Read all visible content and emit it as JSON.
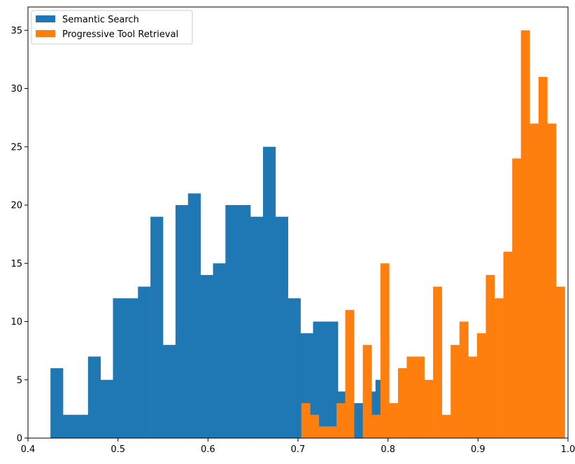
{
  "chart_data": {
    "type": "histogram",
    "title": "",
    "xlabel": "",
    "ylabel": "",
    "xlim": [
      0.4,
      1.0
    ],
    "ylim": [
      0,
      37
    ],
    "x_ticks": [
      0.4,
      0.5,
      0.6,
      0.7,
      0.8,
      0.9,
      1.0
    ],
    "y_ticks": [
      0,
      5,
      10,
      15,
      20,
      25,
      30,
      35
    ],
    "x_tick_labels": [
      "0.4",
      "0.5",
      "0.6",
      "0.7",
      "0.8",
      "0.9",
      "1.0"
    ],
    "y_tick_labels": [
      "0",
      "5",
      "10",
      "15",
      "20",
      "25",
      "30",
      "35"
    ],
    "grid": false,
    "legend_position": "upper-left",
    "series": [
      {
        "name": "Semantic Search",
        "color": "#1f77b4",
        "bins": [
          {
            "x0": 0.425,
            "x1": 0.4389,
            "count": 6
          },
          {
            "x0": 0.4389,
            "x1": 0.4528,
            "count": 2
          },
          {
            "x0": 0.4528,
            "x1": 0.4667,
            "count": 2
          },
          {
            "x0": 0.4667,
            "x1": 0.4806,
            "count": 7
          },
          {
            "x0": 0.4806,
            "x1": 0.4944,
            "count": 5
          },
          {
            "x0": 0.4944,
            "x1": 0.5083,
            "count": 12
          },
          {
            "x0": 0.5083,
            "x1": 0.5222,
            "count": 12
          },
          {
            "x0": 0.5222,
            "x1": 0.5361,
            "count": 13
          },
          {
            "x0": 0.5361,
            "x1": 0.55,
            "count": 19
          },
          {
            "x0": 0.55,
            "x1": 0.5639,
            "count": 8
          },
          {
            "x0": 0.5639,
            "x1": 0.5778,
            "count": 20
          },
          {
            "x0": 0.5778,
            "x1": 0.5917,
            "count": 21
          },
          {
            "x0": 0.5917,
            "x1": 0.6056,
            "count": 14
          },
          {
            "x0": 0.6056,
            "x1": 0.6194,
            "count": 15
          },
          {
            "x0": 0.6194,
            "x1": 0.6333,
            "count": 20
          },
          {
            "x0": 0.6333,
            "x1": 0.6472,
            "count": 20
          },
          {
            "x0": 0.6472,
            "x1": 0.6611,
            "count": 19
          },
          {
            "x0": 0.6611,
            "x1": 0.675,
            "count": 25
          },
          {
            "x0": 0.675,
            "x1": 0.6889,
            "count": 19
          },
          {
            "x0": 0.6889,
            "x1": 0.7028,
            "count": 12
          },
          {
            "x0": 0.7028,
            "x1": 0.7167,
            "count": 9
          },
          {
            "x0": 0.7167,
            "x1": 0.7306,
            "count": 10
          },
          {
            "x0": 0.7306,
            "x1": 0.7444,
            "count": 10
          },
          {
            "x0": 0.7444,
            "x1": 0.7583,
            "count": 4
          },
          {
            "x0": 0.7583,
            "x1": 0.7722,
            "count": 3
          },
          {
            "x0": 0.7722,
            "x1": 0.7861,
            "count": 4
          },
          {
            "x0": 0.7861,
            "x1": 0.792,
            "count": 5
          }
        ]
      },
      {
        "name": "Progressive Tool Retrieval",
        "color": "#ff7f0e",
        "bins": [
          {
            "x0": 0.7037,
            "x1": 0.7135,
            "count": 3
          },
          {
            "x0": 0.7135,
            "x1": 0.7232,
            "count": 2
          },
          {
            "x0": 0.7232,
            "x1": 0.733,
            "count": 1
          },
          {
            "x0": 0.733,
            "x1": 0.7428,
            "count": 1
          },
          {
            "x0": 0.7428,
            "x1": 0.7525,
            "count": 3
          },
          {
            "x0": 0.7525,
            "x1": 0.7623,
            "count": 11
          },
          {
            "x0": 0.7623,
            "x1": 0.772,
            "count": 0
          },
          {
            "x0": 0.772,
            "x1": 0.7818,
            "count": 8
          },
          {
            "x0": 0.7818,
            "x1": 0.7916,
            "count": 2
          },
          {
            "x0": 0.7916,
            "x1": 0.8013,
            "count": 15
          },
          {
            "x0": 0.8013,
            "x1": 0.8111,
            "count": 3
          },
          {
            "x0": 0.8111,
            "x1": 0.8208,
            "count": 6
          },
          {
            "x0": 0.8208,
            "x1": 0.8306,
            "count": 7
          },
          {
            "x0": 0.8306,
            "x1": 0.8404,
            "count": 7
          },
          {
            "x0": 0.8404,
            "x1": 0.8501,
            "count": 5
          },
          {
            "x0": 0.8501,
            "x1": 0.8599,
            "count": 13
          },
          {
            "x0": 0.8599,
            "x1": 0.8696,
            "count": 2
          },
          {
            "x0": 0.8696,
            "x1": 0.8794,
            "count": 8
          },
          {
            "x0": 0.8794,
            "x1": 0.8892,
            "count": 10
          },
          {
            "x0": 0.8892,
            "x1": 0.8989,
            "count": 7
          },
          {
            "x0": 0.8989,
            "x1": 0.9087,
            "count": 9
          },
          {
            "x0": 0.9087,
            "x1": 0.9184,
            "count": 14
          },
          {
            "x0": 0.9184,
            "x1": 0.9282,
            "count": 12
          },
          {
            "x0": 0.9282,
            "x1": 0.938,
            "count": 16
          },
          {
            "x0": 0.938,
            "x1": 0.9477,
            "count": 24
          },
          {
            "x0": 0.9477,
            "x1": 0.9575,
            "count": 35
          },
          {
            "x0": 0.9575,
            "x1": 0.9672,
            "count": 27
          },
          {
            "x0": 0.9672,
            "x1": 0.977,
            "count": 31
          },
          {
            "x0": 0.977,
            "x1": 0.9868,
            "count": 27
          },
          {
            "x0": 0.9868,
            "x1": 0.9965,
            "count": 13
          }
        ]
      }
    ]
  }
}
